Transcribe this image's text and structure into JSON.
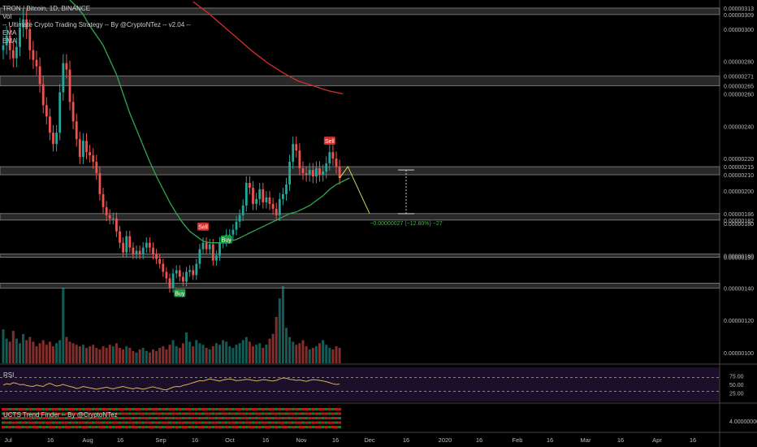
{
  "header": {
    "symbol_line": "TRON / Bitcoin, 1D, BINANCE",
    "vol_label": "Vol",
    "strategy_label": "-- Ultimate Crypto Trading Strategy -- By @CryptoNTez -- v2.04 --",
    "ema1_label": "EMA",
    "ema2_label": "EMA"
  },
  "rsi_panel": {
    "label": "RSI",
    "ticks": [
      "75.00",
      "50.00",
      "25.00"
    ]
  },
  "trend_panel": {
    "label": "UCTS Trend Finder -- By @CryptoNTez",
    "tick": "4.00000000"
  },
  "colors": {
    "up": "#26a69a",
    "down": "#ef5350",
    "ema_fast": "#2fa84f",
    "ema_slow": "#d32f2f",
    "zone": "#3a3a3a",
    "rsi_line": "#d6b15a",
    "rsi_bg": "#1b0f2a",
    "buy_badge": "#1e9b3a",
    "sell_badge": "#d32f2f",
    "measure_text": "#4caf50"
  },
  "chart_data": [
    {
      "type": "line",
      "title": "TRON / Bitcoin, 1D, BINANCE",
      "xlabel": "",
      "ylabel": "",
      "ylim": [
        9.3e-07,
        3.17e-06
      ],
      "x_ticks": [
        "Jul",
        "16",
        "Aug",
        "16",
        "Sep",
        "16",
        "Oct",
        "16",
        "Nov",
        "16",
        "Dec",
        "16",
        "2020",
        "16",
        "Feb",
        "16",
        "Mar",
        "16",
        "Apr",
        "16"
      ],
      "y_ticks": [
        "0.00000313",
        "0.00000309",
        "0.00000300",
        "0.00000280",
        "0.00000271",
        "0.00000265",
        "0.00000260",
        "0.00000240",
        "0.00000220",
        "0.00000215",
        "0.00000210",
        "0.00000200",
        "0.00000186",
        "0.00000182",
        "0.00000180",
        "0.00000160",
        "0.00000159",
        "0.00000140",
        "0.00000120",
        "0.00000100"
      ],
      "price_close": [
        2.9e-06,
        2.96e-06,
        2.87e-06,
        2.82e-06,
        2.89e-06,
        3.01e-06,
        3.06e-06,
        3e-06,
        2.87e-06,
        2.81e-06,
        2.77e-06,
        2.66e-06,
        2.53e-06,
        2.46e-06,
        2.36e-06,
        2.29e-06,
        2.36e-06,
        2.61e-06,
        2.79e-06,
        2.75e-06,
        2.55e-06,
        2.43e-06,
        2.32e-06,
        2.21e-06,
        2.31e-06,
        2.24e-06,
        2.22e-06,
        2.18e-06,
        2.11e-06,
        1.98e-06,
        1.9e-06,
        1.85e-06,
        1.83e-06,
        1.83e-06,
        1.75e-06,
        1.68e-06,
        1.62e-06,
        1.72e-06,
        1.65e-06,
        1.61e-06,
        1.63e-06,
        1.61e-06,
        1.65e-06,
        1.68e-06,
        1.65e-06,
        1.61e-06,
        1.58e-06,
        1.55e-06,
        1.5e-06,
        1.46e-06,
        1.4e-06,
        1.49e-06,
        1.51e-06,
        1.47e-06,
        1.44e-06,
        1.5e-06,
        1.51e-06,
        1.48e-06,
        1.55e-06,
        1.64e-06,
        1.68e-06,
        1.64e-06,
        1.67e-06,
        1.57e-06,
        1.6e-06,
        1.68e-06,
        1.69e-06,
        1.73e-06,
        1.73e-06,
        1.76e-06,
        1.81e-06,
        1.85e-06,
        1.91e-06,
        2.05e-06,
        2.02e-06,
        1.92e-06,
        1.95e-06,
        2.01e-06,
        1.93e-06,
        1.96e-06,
        1.92e-06,
        1.89e-06,
        1.85e-06,
        1.95e-06,
        1.98e-06,
        2.04e-06,
        2.18e-06,
        2.29e-06,
        2.25e-06,
        2.14e-06,
        2.11e-06,
        2.1e-06,
        2.13e-06,
        2.09e-06,
        2.14e-06,
        2.1e-06,
        2.12e-06,
        2.17e-06,
        2.24e-06,
        2.2e-06,
        2.15e-06,
        2.08e-06
      ],
      "ema_fast": [
        3.18e-06,
        3.14e-06,
        3.09e-06,
        3.02e-06,
        2.96e-06,
        2.9e-06,
        2.81e-06,
        2.72e-06,
        2.6e-06,
        2.48e-06,
        2.38e-06,
        2.28e-06,
        2.18e-06,
        2.09e-06,
        2.01e-06,
        1.93e-06,
        1.86e-06,
        1.8e-06,
        1.75e-06,
        1.72e-06,
        1.69e-06,
        1.68e-06,
        1.68e-06,
        1.68e-06,
        1.69e-06,
        1.7e-06,
        1.72e-06,
        1.74e-06,
        1.76e-06,
        1.78e-06,
        1.8e-06,
        1.82e-06,
        1.84e-06,
        1.86e-06,
        1.87e-06,
        1.89e-06,
        1.91e-06,
        1.94e-06,
        1.97e-06,
        2.01e-06,
        2.04e-06,
        2.06e-06,
        2.08e-06
      ],
      "ema_slow": [
        3.17e-06,
        3.1e-06,
        3.02e-06,
        2.94e-06,
        2.86e-06,
        2.79e-06,
        2.73e-06,
        2.68e-06,
        2.65e-06,
        2.62e-06,
        2.6e-06
      ],
      "zones": [
        {
          "top": 3.13e-06,
          "bottom": 3.09e-06
        },
        {
          "top": 2.71e-06,
          "bottom": 2.65e-06
        },
        {
          "top": 2.15e-06,
          "bottom": 2.1e-06
        },
        {
          "top": 1.86e-06,
          "bottom": 1.82e-06
        },
        {
          "top": 1.61e-06,
          "bottom": 1.59e-06
        },
        {
          "top": 1.43e-06,
          "bottom": 1.4e-06
        }
      ],
      "signals": [
        {
          "label": "Buy",
          "bar": 53,
          "price": 1.42e-06,
          "side": "buy"
        },
        {
          "label": "Sell",
          "bar": 60,
          "price": 1.72e-06,
          "side": "sell"
        },
        {
          "label": "Buy",
          "bar": 67,
          "price": 1.75e-06,
          "side": "buy"
        },
        {
          "label": "Sell",
          "bar": 98,
          "price": 2.25e-06,
          "side": "sell"
        }
      ],
      "projection": {
        "from": 2.08e-06,
        "peak": 2.15e-06,
        "to": 1.86e-06
      },
      "measure": {
        "top": 2.13e-06,
        "bottom": 1.86e-06,
        "label": "−0.00000027 (−12.80%) −27"
      }
    },
    {
      "type": "bar",
      "series": [
        {
          "values": [
            44,
            32,
            28,
            42,
            32,
            26,
            38,
            30,
            34,
            28,
            22,
            26,
            30,
            24,
            28,
            22,
            26,
            30,
            98,
            34,
            28,
            26,
            24,
            22,
            24,
            20,
            22,
            24,
            20,
            18,
            22,
            20,
            24,
            22,
            26,
            20,
            18,
            22,
            20,
            16,
            14,
            18,
            20,
            16,
            14,
            18,
            16,
            20,
            22,
            18,
            24,
            30,
            22,
            20,
            26,
            40,
            28,
            22,
            30,
            26,
            24,
            20,
            18,
            22,
            26,
            24,
            30,
            28,
            22,
            20,
            24,
            26,
            30,
            34,
            28,
            22,
            24,
            26,
            20,
            24,
            32,
            38,
            60,
            84,
            100,
            46,
            34,
            28,
            24,
            26,
            30,
            22,
            18,
            20,
            22,
            26,
            30,
            24,
            20,
            18,
            22,
            20
          ]
        }
      ]
    },
    {
      "type": "line",
      "ylim": [
        0,
        100
      ],
      "series": [
        {
          "values": [
            48,
            52,
            50,
            55,
            53,
            49,
            50,
            47,
            45,
            44,
            48,
            46,
            44,
            50,
            53,
            49,
            45,
            47,
            50,
            47,
            44,
            42,
            38,
            40,
            44,
            42,
            40,
            38,
            36,
            38,
            40,
            42,
            39,
            37,
            40,
            42,
            44,
            41,
            39,
            37,
            40,
            38,
            36,
            38,
            41,
            43,
            40,
            38,
            35,
            34,
            38,
            42,
            44,
            43,
            47,
            49,
            52,
            55,
            58,
            61,
            60,
            63,
            66,
            64,
            62,
            60,
            63,
            65,
            66,
            64,
            61,
            62,
            63,
            65,
            64,
            62,
            60,
            62,
            64,
            63,
            61,
            60,
            62,
            66,
            69,
            68,
            65,
            64,
            62,
            63,
            61,
            59,
            62,
            64,
            63,
            62,
            60,
            58,
            55,
            52,
            50,
            51
          ]
        }
      ]
    }
  ]
}
